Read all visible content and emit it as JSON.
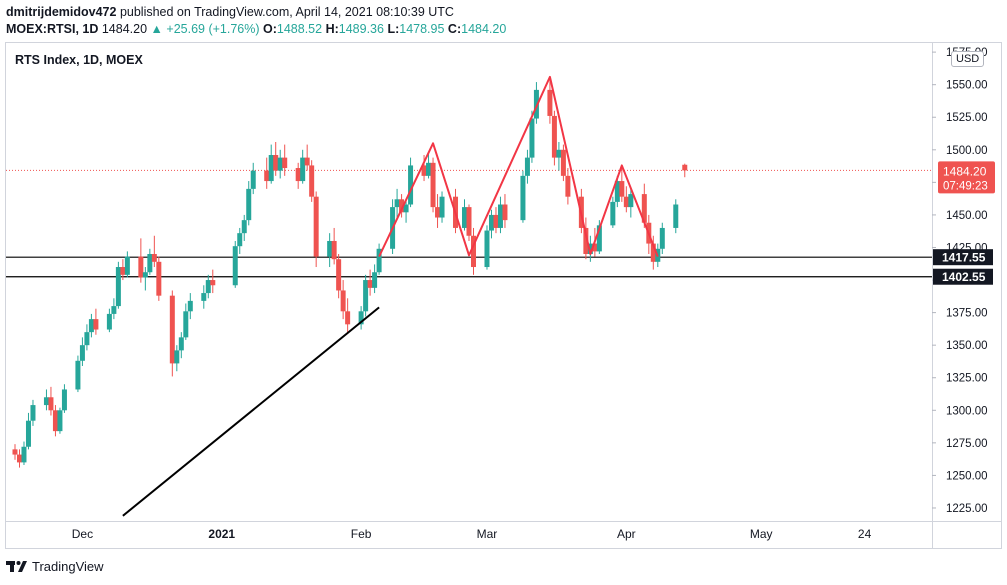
{
  "header": {
    "author": "dmitrijdemidov472",
    "published_text": "published on TradingView.com, April 14, 2021 08:10:39 UTC",
    "symbol": "MOEX:RTSI, 1D",
    "last": "1484.20",
    "change": "+25.69 (+1.76%)",
    "o_label": "O:",
    "o_value": "1488.52",
    "h_label": "H:",
    "h_value": "1489.36",
    "l_label": "L:",
    "l_value": "1478.95",
    "c_label": "C:",
    "c_value": "1484.20"
  },
  "chart_title": "RTS Index, 1D, MOEX",
  "currency": "USD",
  "footer": {
    "brand": "TradingView"
  },
  "colors": {
    "up": "#26a69a",
    "down": "#ef5350",
    "pattern": "#f23645",
    "trendline": "#000000",
    "grid": "#d1d4dc"
  },
  "chart_data": {
    "type": "candlestick",
    "title": "RTS Index, 1D, MOEX",
    "ylim": [
      1215,
      1582
    ],
    "yticks": [
      1225,
      1250,
      1275,
      1300,
      1325,
      1350,
      1375,
      1400,
      1425,
      1450,
      1475,
      1500,
      1525,
      1550,
      1575
    ],
    "ytick_labels": [
      "1225.00",
      "1250.00",
      "1275.00",
      "1300.00",
      "1325.00",
      "1350.00",
      "1375.00",
      "1400.00",
      "1425.00",
      "1450.00",
      "1475.00",
      "1500.00",
      "1525.00",
      "1550.00",
      "1575.00"
    ],
    "x_labels": [
      {
        "label": "Dec",
        "date": "2020-12-01"
      },
      {
        "label": "2021",
        "date": "2021-01-01"
      },
      {
        "label": "Feb",
        "date": "2021-02-01"
      },
      {
        "label": "Mar",
        "date": "2021-03-01"
      },
      {
        "label": "Apr",
        "date": "2021-04-01"
      },
      {
        "label": "May",
        "date": "2021-05-01"
      },
      {
        "label": "24",
        "date": "2021-05-24"
      }
    ],
    "x_range": [
      "2020-11-14",
      "2021-06-08"
    ],
    "candles": [
      [
        "2020-11-16",
        1270,
        1274,
        1262,
        1266
      ],
      [
        "2020-11-17",
        1266,
        1270,
        1256,
        1260
      ],
      [
        "2020-11-18",
        1260,
        1276,
        1258,
        1272
      ],
      [
        "2020-11-19",
        1272,
        1298,
        1270,
        1292
      ],
      [
        "2020-11-20",
        1292,
        1308,
        1288,
        1304
      ],
      [
        "2020-11-23",
        1304,
        1316,
        1300,
        1310
      ],
      [
        "2020-11-24",
        1310,
        1318,
        1296,
        1300
      ],
      [
        "2020-11-25",
        1300,
        1304,
        1280,
        1284
      ],
      [
        "2020-11-26",
        1284,
        1302,
        1282,
        1300
      ],
      [
        "2020-11-27",
        1300,
        1320,
        1298,
        1316
      ],
      [
        "2020-11-30",
        1316,
        1342,
        1314,
        1338
      ],
      [
        "2020-12-01",
        1338,
        1356,
        1334,
        1350
      ],
      [
        "2020-12-02",
        1350,
        1366,
        1346,
        1360
      ],
      [
        "2020-12-03",
        1360,
        1374,
        1356,
        1370
      ],
      [
        "2020-12-04",
        1370,
        1378,
        1358,
        1362
      ],
      [
        "2020-12-07",
        1362,
        1378,
        1360,
        1374
      ],
      [
        "2020-12-08",
        1374,
        1386,
        1370,
        1380
      ],
      [
        "2020-12-09",
        1380,
        1414,
        1378,
        1410
      ],
      [
        "2020-12-10",
        1410,
        1416,
        1400,
        1404
      ],
      [
        "2020-12-11",
        1404,
        1422,
        1402,
        1418
      ],
      [
        "2020-12-14",
        1418,
        1432,
        1398,
        1402
      ],
      [
        "2020-12-15",
        1402,
        1410,
        1392,
        1406
      ],
      [
        "2020-12-16",
        1406,
        1424,
        1404,
        1420
      ],
      [
        "2020-12-17",
        1420,
        1434,
        1410,
        1414
      ],
      [
        "2020-12-18",
        1414,
        1418,
        1384,
        1388
      ],
      [
        "2020-12-21",
        1388,
        1392,
        1326,
        1336
      ],
      [
        "2020-12-22",
        1336,
        1350,
        1330,
        1346
      ],
      [
        "2020-12-23",
        1346,
        1360,
        1340,
        1356
      ],
      [
        "2020-12-24",
        1356,
        1382,
        1354,
        1376
      ],
      [
        "2020-12-25",
        1376,
        1390,
        1370,
        1384
      ],
      [
        "2020-12-28",
        1384,
        1396,
        1378,
        1390
      ],
      [
        "2020-12-29",
        1390,
        1404,
        1386,
        1400
      ],
      [
        "2020-12-30",
        1400,
        1408,
        1390,
        1396
      ],
      [
        "2021-01-04",
        1396,
        1430,
        1394,
        1426
      ],
      [
        "2021-01-05",
        1426,
        1440,
        1420,
        1436
      ],
      [
        "2021-01-06",
        1436,
        1450,
        1430,
        1446
      ],
      [
        "2021-01-07",
        1446,
        1476,
        1442,
        1470
      ],
      [
        "2021-01-08",
        1470,
        1490,
        1466,
        1484
      ],
      [
        "2021-01-11",
        1484,
        1494,
        1470,
        1476
      ],
      [
        "2021-01-12",
        1476,
        1504,
        1474,
        1496
      ],
      [
        "2021-01-13",
        1496,
        1506,
        1480,
        1484
      ],
      [
        "2021-01-14",
        1484,
        1500,
        1478,
        1494
      ],
      [
        "2021-01-15",
        1494,
        1504,
        1480,
        1486
      ],
      [
        "2021-01-18",
        1486,
        1490,
        1470,
        1476
      ],
      [
        "2021-01-19",
        1476,
        1500,
        1474,
        1494
      ],
      [
        "2021-01-20",
        1494,
        1504,
        1484,
        1488
      ],
      [
        "2021-01-21",
        1488,
        1492,
        1460,
        1464
      ],
      [
        "2021-01-22",
        1464,
        1468,
        1410,
        1418
      ],
      [
        "2021-01-25",
        1418,
        1436,
        1410,
        1430
      ],
      [
        "2021-01-26",
        1430,
        1440,
        1412,
        1416
      ],
      [
        "2021-01-27",
        1416,
        1420,
        1386,
        1392
      ],
      [
        "2021-01-28",
        1392,
        1400,
        1370,
        1376
      ],
      [
        "2021-01-29",
        1376,
        1386,
        1360,
        1366
      ],
      [
        "2021-02-01",
        1366,
        1380,
        1362,
        1376
      ],
      [
        "2021-02-02",
        1376,
        1404,
        1372,
        1400
      ],
      [
        "2021-02-03",
        1400,
        1408,
        1388,
        1394
      ],
      [
        "2021-02-04",
        1394,
        1412,
        1390,
        1406
      ],
      [
        "2021-02-05",
        1406,
        1428,
        1404,
        1424
      ],
      [
        "2021-02-08",
        1424,
        1462,
        1420,
        1456
      ],
      [
        "2021-02-09",
        1456,
        1470,
        1448,
        1462
      ],
      [
        "2021-02-10",
        1462,
        1466,
        1448,
        1452
      ],
      [
        "2021-02-11",
        1452,
        1462,
        1444,
        1458
      ],
      [
        "2021-02-12",
        1458,
        1494,
        1456,
        1488
      ],
      [
        "2021-02-15",
        1488,
        1496,
        1476,
        1480
      ],
      [
        "2021-02-16",
        1480,
        1498,
        1478,
        1490
      ],
      [
        "2021-02-17",
        1490,
        1494,
        1452,
        1456
      ],
      [
        "2021-02-18",
        1456,
        1466,
        1440,
        1448
      ],
      [
        "2021-02-19",
        1448,
        1468,
        1444,
        1464
      ],
      [
        "2021-02-22",
        1464,
        1470,
        1436,
        1440
      ],
      [
        "2021-02-24",
        1440,
        1462,
        1438,
        1456
      ],
      [
        "2021-02-25",
        1456,
        1458,
        1430,
        1434
      ],
      [
        "2021-02-26",
        1434,
        1440,
        1404,
        1410
      ],
      [
        "2021-03-01",
        1410,
        1442,
        1408,
        1438
      ],
      [
        "2021-03-02",
        1438,
        1454,
        1432,
        1450
      ],
      [
        "2021-03-03",
        1450,
        1456,
        1436,
        1440
      ],
      [
        "2021-03-04",
        1440,
        1464,
        1436,
        1458
      ],
      [
        "2021-03-05",
        1458,
        1466,
        1440,
        1446
      ],
      [
        "2021-03-09",
        1446,
        1484,
        1444,
        1480
      ],
      [
        "2021-03-10",
        1480,
        1500,
        1474,
        1494
      ],
      [
        "2021-03-11",
        1494,
        1530,
        1490,
        1524
      ],
      [
        "2021-03-12",
        1524,
        1552,
        1520,
        1546
      ],
      [
        "2021-03-15",
        1546,
        1556,
        1520,
        1526
      ],
      [
        "2021-03-16",
        1526,
        1530,
        1488,
        1494
      ],
      [
        "2021-03-17",
        1494,
        1506,
        1484,
        1500
      ],
      [
        "2021-03-18",
        1500,
        1504,
        1476,
        1480
      ],
      [
        "2021-03-19",
        1480,
        1486,
        1458,
        1464
      ],
      [
        "2021-03-22",
        1464,
        1470,
        1436,
        1440
      ],
      [
        "2021-03-23",
        1440,
        1448,
        1416,
        1420
      ],
      [
        "2021-03-24",
        1420,
        1434,
        1414,
        1428
      ],
      [
        "2021-03-25",
        1428,
        1440,
        1418,
        1422
      ],
      [
        "2021-03-26",
        1422,
        1446,
        1420,
        1442
      ],
      [
        "2021-03-29",
        1442,
        1464,
        1440,
        1460
      ],
      [
        "2021-03-30",
        1460,
        1480,
        1456,
        1476
      ],
      [
        "2021-03-31",
        1476,
        1486,
        1460,
        1464
      ],
      [
        "2021-04-01",
        1464,
        1472,
        1452,
        1456
      ],
      [
        "2021-04-02",
        1456,
        1470,
        1448,
        1466
      ],
      [
        "2021-04-05",
        1466,
        1474,
        1440,
        1444
      ],
      [
        "2021-04-06",
        1444,
        1450,
        1420,
        1428
      ],
      [
        "2021-04-07",
        1428,
        1434,
        1408,
        1414
      ],
      [
        "2021-04-08",
        1414,
        1428,
        1410,
        1424
      ],
      [
        "2021-04-09",
        1424,
        1444,
        1420,
        1440
      ],
      [
        "2021-04-12",
        1440,
        1462,
        1436,
        1458
      ],
      [
        "2021-04-14",
        1488.52,
        1489.36,
        1478.95,
        1484.2
      ]
    ],
    "last_price": {
      "value": 1484.2,
      "label": "1484.20",
      "countdown": "07:49:23"
    },
    "hlines": [
      {
        "value": 1417.55,
        "label": "1417.55"
      },
      {
        "value": 1402.55,
        "label": "1402.55"
      }
    ],
    "trendline": [
      [
        "2020-12-10",
        1219
      ],
      [
        "2021-02-05",
        1379
      ]
    ],
    "pattern_line": [
      [
        "2021-02-05",
        1418
      ],
      [
        "2021-02-17",
        1505
      ],
      [
        "2021-02-25",
        1419
      ],
      [
        "2021-03-15",
        1556
      ],
      [
        "2021-03-24",
        1420
      ],
      [
        "2021-03-31",
        1488
      ],
      [
        "2021-04-08",
        1418
      ]
    ]
  }
}
